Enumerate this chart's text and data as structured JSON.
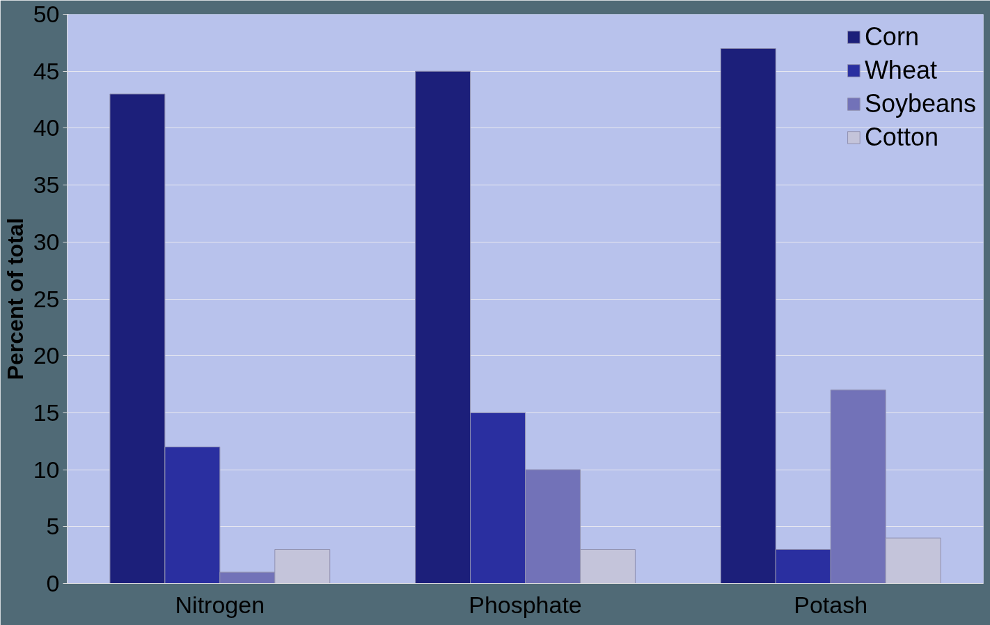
{
  "chart_data": {
    "type": "bar",
    "ylabel": "Percent of total",
    "categories": [
      "Nitrogen",
      "Phosphate",
      "Potash"
    ],
    "series": [
      {
        "name": "Corn",
        "color": "#1c1f7a",
        "values": [
          43,
          45,
          47
        ]
      },
      {
        "name": "Wheat",
        "color": "#2a2fa0",
        "values": [
          12,
          15,
          3
        ]
      },
      {
        "name": "Soybeans",
        "color": "#7272b8",
        "values": [
          1,
          10,
          17
        ]
      },
      {
        "name": "Cotton",
        "color": "#c4c4da",
        "values": [
          3,
          3,
          4
        ]
      }
    ],
    "ylim": [
      0,
      50
    ],
    "yticks": [
      0,
      5,
      10,
      15,
      20,
      25,
      30,
      35,
      40,
      45,
      50
    ],
    "grid": "y",
    "legend": "top right"
  }
}
